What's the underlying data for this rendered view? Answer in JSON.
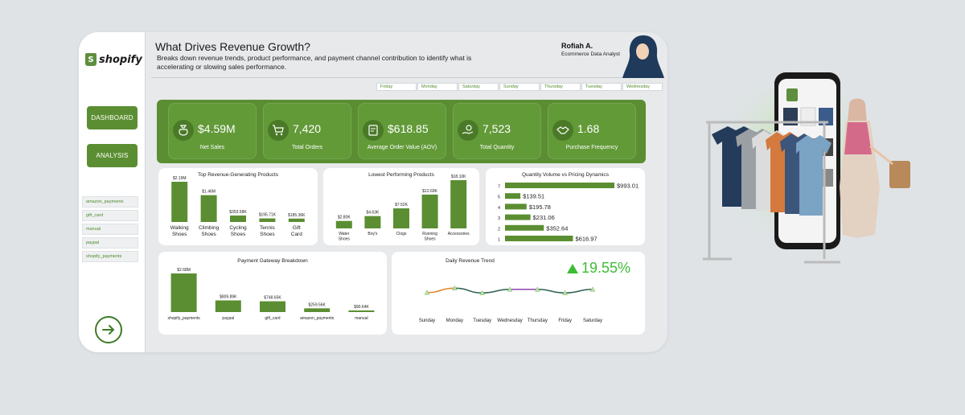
{
  "sidebar": {
    "logo_text": "shopify",
    "logo_glyph": "S",
    "nav": [
      {
        "label": "DASHBOARD"
      },
      {
        "label": "ANALYSIS"
      }
    ],
    "payment_filters": [
      "amazon_payments",
      "gift_card",
      "manual",
      "paypal",
      "shopify_payments"
    ],
    "next_icon": "arrow-right-circle-icon"
  },
  "header": {
    "title": "What Drives Revenue Growth?",
    "subtitle": "Breaks down revenue trends, product performance, and payment channel contribution to identify what is accelerating or slowing sales performance.",
    "author_name": "Rofiah A.",
    "author_role": "Ecommerce Data Analyst"
  },
  "day_filters": [
    "Friday",
    "Monday",
    "Saturday",
    "Sunday",
    "Thursday",
    "Tuesday",
    "Wednesday"
  ],
  "kpis": [
    {
      "value": "$4.59M",
      "label": "Net Sales",
      "icon": "money-bag-icon"
    },
    {
      "value": "7,420",
      "label": "Total Orders",
      "icon": "shopping-cart-icon"
    },
    {
      "value": "$618.85",
      "label": "Average Order Value (AOV)",
      "icon": "invoice-icon"
    },
    {
      "value": "7,523",
      "label": "Total Quantity",
      "icon": "hand-coins-icon"
    },
    {
      "value": "1.68",
      "label": "Purchase Frequency",
      "icon": "handshake-icon"
    }
  ],
  "growth_indicator": {
    "value": "19.55%",
    "direction": "up",
    "color": "#3dbd35"
  },
  "colors": {
    "accent": "#5b8e32",
    "bar": "#5b8e32",
    "line_start": "#e67e22",
    "line_mid": "#2c5f4f",
    "line_purple": "#8e44ad"
  },
  "chart_data": [
    {
      "type": "bar",
      "title": "Top Revenue-Generating Products",
      "categories": [
        "Walking Shoes",
        "Climbing Shoes",
        "Cycling Shoes",
        "Tennis Shoes",
        "Gift Card"
      ],
      "values": [
        2190000,
        1460000,
        353580,
        195710,
        185360
      ],
      "labels": [
        "$2.19M",
        "$1.46M",
        "$353.58K",
        "$195.71K",
        "$185.36K"
      ]
    },
    {
      "type": "bar",
      "title": "Lowest Performing Products",
      "categories": [
        "Water Shoes",
        "Boy's",
        "Clogs",
        "Running Shoes",
        "Accessories"
      ],
      "values": [
        2800,
        4630,
        7520,
        12690,
        18100
      ],
      "labels": [
        "$2.80K",
        "$4.63K",
        "$7.52K",
        "$12.69K",
        "$18.10K"
      ]
    },
    {
      "type": "bar",
      "orientation": "horizontal",
      "title": "Quantity Volume vs Pricing Dynamics",
      "categories": [
        "7",
        "5",
        "4",
        "3",
        "2",
        "1"
      ],
      "values": [
        993.01,
        139.51,
        195.78,
        231.06,
        352.64,
        616.97
      ],
      "labels": [
        "$993.01",
        "$139.51",
        "$195.78",
        "$231.06",
        "$352.64",
        "$616.97"
      ]
    },
    {
      "type": "bar",
      "title": "Payment Gateway Breakdown",
      "categories": [
        "shopify_payments",
        "paypal",
        "gift_card",
        "amazon_payments",
        "manual"
      ],
      "values": [
        2680000,
        809890,
        748650,
        259560,
        90640
      ],
      "labels": [
        "$2.68M",
        "$809.89K",
        "$748.65K",
        "$259.56K",
        "$90.64K"
      ]
    },
    {
      "type": "line",
      "title": "Daily Revenue Trend",
      "categories": [
        "Sunday",
        "Monday",
        "Tuesday",
        "Wednesday",
        "Thursday",
        "Friday",
        "Saturday"
      ],
      "values": [
        0.48,
        0.62,
        0.47,
        0.58,
        0.58,
        0.47,
        0.58
      ]
    }
  ]
}
